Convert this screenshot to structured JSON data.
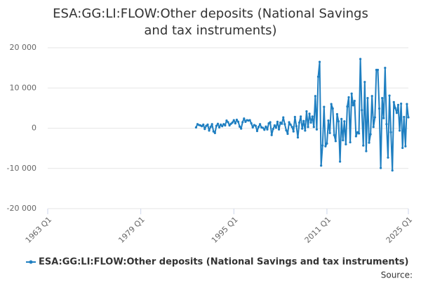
{
  "chart_data": {
    "type": "line",
    "title": "ESA:GG:LI:FLOW:Other deposits (National Savings and tax instruments)",
    "source": "Source:",
    "xlim": [
      1963,
      2025
    ],
    "xticks": [
      {
        "value": 1963,
        "label": "1963 Q1"
      },
      {
        "value": 1979,
        "label": "1979 Q1"
      },
      {
        "value": 1995,
        "label": "1995 Q1"
      },
      {
        "value": 2011,
        "label": "2011 Q1"
      },
      {
        "value": 2025,
        "label": "2025 Q1"
      }
    ],
    "ylim": [
      -20000,
      20000
    ],
    "yticks": [
      {
        "value": -20000,
        "label": "-20 000"
      },
      {
        "value": -10000,
        "label": "-10 000"
      },
      0,
      {
        "value": 10000,
        "label": "10 000"
      },
      {
        "value": 20000,
        "label": "20 000"
      }
    ],
    "grid": true,
    "x": [
      1988.5,
      1988.75,
      1989,
      1989.25,
      1989.5,
      1989.75,
      1990,
      1990.25,
      1990.5,
      1990.75,
      1991,
      1991.25,
      1991.5,
      1991.75,
      1992,
      1992.25,
      1992.5,
      1992.75,
      1993,
      1993.25,
      1993.5,
      1993.75,
      1994,
      1994.25,
      1994.5,
      1994.75,
      1995,
      1995.25,
      1995.5,
      1995.75,
      1996,
      1996.25,
      1996.5,
      1996.75,
      1997,
      1997.25,
      1997.5,
      1997.75,
      1998,
      1998.25,
      1998.5,
      1998.75,
      1999,
      1999.25,
      1999.5,
      1999.75,
      2000,
      2000.25,
      2000.5,
      2000.75,
      2001,
      2001.25,
      2001.5,
      2001.75,
      2002,
      2002.25,
      2002.5,
      2002.75,
      2003,
      2003.25,
      2003.5,
      2003.75,
      2004,
      2004.25,
      2004.5,
      2004.75,
      2005,
      2005.25,
      2005.5,
      2005.75,
      2006,
      2006.25,
      2006.5,
      2006.75,
      2007,
      2007.25,
      2007.5,
      2007.75,
      2008,
      2008.25,
      2008.5,
      2008.75,
      2009,
      2009.25,
      2009.5,
      2009.75,
      2010,
      2010.25,
      2010.5,
      2010.75,
      2011,
      2011.25,
      2011.5,
      2011.75,
      2012,
      2012.25,
      2012.5,
      2012.75,
      2013,
      2013.25,
      2013.5,
      2013.75,
      2014,
      2014.25,
      2014.5,
      2014.75,
      2015,
      2015.25,
      2015.5,
      2015.75,
      2016,
      2016.25,
      2016.5,
      2016.75,
      2017,
      2017.25,
      2017.5,
      2017.75,
      2018,
      2018.25,
      2018.5,
      2018.75,
      2019,
      2019.25,
      2019.5,
      2019.75,
      2020,
      2020.25,
      2020.5,
      2020.75,
      2021,
      2021.25,
      2021.5,
      2021.75,
      2022,
      2022.25,
      2022.5,
      2022.75,
      2023,
      2023.25,
      2023.5,
      2023.75,
      2024,
      2024.25,
      2024.5,
      2024.75,
      2025
    ],
    "series": [
      {
        "name": "ESA:GG:LI:FLOW:Other deposits (National Savings and tax instruments)",
        "color": "#1f7fc1",
        "values": [
          200,
          1000,
          800,
          700,
          500,
          900,
          -200,
          600,
          900,
          -600,
          300,
          1000,
          -800,
          -1200,
          600,
          1100,
          200,
          900,
          500,
          1000,
          700,
          1900,
          1500,
          700,
          1100,
          1400,
          2000,
          1200,
          2100,
          1600,
          400,
          -100,
          1500,
          2400,
          1600,
          2000,
          1900,
          2000,
          1200,
          200,
          800,
          600,
          -700,
          300,
          1000,
          200,
          100,
          -400,
          400,
          -300,
          1200,
          1500,
          -1700,
          -200,
          700,
          100,
          1600,
          -300,
          1400,
          1100,
          2700,
          1000,
          -500,
          -1400,
          1500,
          900,
          300,
          -800,
          2800,
          500,
          -2300,
          1400,
          2900,
          -100,
          1800,
          -600,
          4200,
          300,
          3600,
          1400,
          2900,
          300,
          8000,
          -300,
          12800,
          16500,
          -9300,
          -4300,
          5300,
          -4500,
          -3800,
          1900,
          -1200,
          6000,
          4900,
          -1700,
          -3200,
          3500,
          1700,
          -8300,
          2300,
          -3000,
          1700,
          -4000,
          5400,
          7700,
          -3500,
          8600,
          5700,
          6800,
          -2000,
          -1000,
          -1300,
          17200,
          4500,
          -4300,
          11500,
          -5700,
          7500,
          -3600,
          -1500,
          8000,
          300,
          2700,
          14500,
          14500,
          4900,
          -9900,
          7500,
          2500,
          15000,
          1000,
          -7300,
          8100,
          -1000,
          -10500,
          6500,
          5000,
          3800,
          5800,
          -600,
          6100,
          -4900,
          2800,
          -4500,
          6000,
          2700
        ]
      }
    ]
  }
}
